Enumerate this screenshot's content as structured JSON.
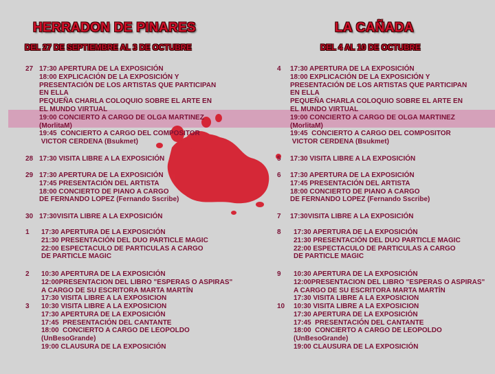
{
  "highlight_color": "#d778a5",
  "splat_color": "#d61a2a",
  "columns": [
    {
      "title": "HERRADON DE PINARES",
      "subtitle": "DEL 27 DE SEPTIEMBRE AL 3 DE OCTUBRE",
      "days": [
        {
          "day": "27",
          "lines": [
            "17:30 APERTURA DE LA EXPOSICIÓN",
            "18:00 EXPLICACIÓN DE LA EXPOSICIÓN Y",
            "PRESENTACIÓN DE LOS ARTISTAS QUE PARTICIPAN",
            "EN ELLA",
            "PEQUEÑA CHARLA COLOQUIO SOBRE EL ARTE EN",
            "EL MUNDO VIRTUAL",
            "19:00 CONCIERTO A CARGO DE OLGA MARTINEZ",
            "(MorlitaM)",
            "19:45  CONCIERTO A CARGO DEL COMPOSITOR",
            " VICTOR CERDENA (Bsukmet)"
          ]
        },
        {
          "day": "28",
          "lines": [
            "17:30 VISITA LIBRE A LA EXPOSICIÓN"
          ]
        },
        {
          "day": "29",
          "lines": [
            "17:30 APERTURA DE LA EXPOSICIÓN",
            "17:45 PRESENTACIÓN DEL ARTISTA",
            "18:00 CONCIERTO DE PIANO A CARGO",
            "DE FERNANDO LOPEZ (Fernando Sscribe)"
          ]
        },
        {
          "day": "30",
          "lines": [
            "17:30VISITA LIBRE A LA EXPOSICIÓN"
          ]
        },
        {
          "day": "1",
          "lines": [
            "17:30 APERTURA DE LA EXPOSICIÓN",
            "21:30 PRESENTACIÓN DEL DUO PARTICLE MAGIC",
            "22:00 ESPECTACULO DE PARTICULAS A CARGO",
            "DE PARTICLE MAGIC"
          ]
        },
        {
          "day": "2",
          "lines": [
            "10:30 APERTURA DE LA EXPOSICIÓN",
            "12:00PRESENTACION DEL LIBRO \"ESPERAS O ASPIRAS\"",
            "A CARGO DE SU ESCRITORA MARTA MARTÍN",
            "17:30 VISITA LIBRE A LA EXPOSICION"
          ]
        },
        {
          "day": "3",
          "lines": [
            "10:30 VISITA LIBRE A LA EXPOSICION",
            "17:30 APERTURA DE LA EXPOSICIÓN",
            "17:45  PRESENTACIÓN DEL CANTANTE",
            "18:00  CONCIERTO A CARGO DE LEOPOLDO",
            "(UnBesoGrande)",
            "19:00 CLAUSURA DE LA EXPOSICIÓN"
          ]
        }
      ]
    },
    {
      "title": "LA CAÑADA",
      "subtitle": "DEL 4 AL 10 DE OCTUBRE",
      "days": [
        {
          "day": "4",
          "lines": [
            "17:30 APERTURA DE LA EXPOSICIÓN",
            "18:00 EXPLICACIÓN DE LA EXPOSICIÓN Y",
            "PRESENTACIÓN DE LOS ARTISTAS QUE PARTICIPAN",
            "EN ELLA",
            "PEQUEÑA CHARLA COLOQUIO SOBRE EL ARTE EN",
            "EL MUNDO VIRTUAL",
            "19:00 CONCIERTO A CARGO DE OLGA MARTINEZ",
            "(MorlitaM)",
            "19:45  CONCIERTO A CARGO DEL COMPOSITOR",
            " VICTOR CERDENA (Bsukmet)"
          ]
        },
        {
          "day": "5",
          "lines": [
            "17:30 VISITA LIBRE A LA EXPOSICIÓN"
          ]
        },
        {
          "day": "6",
          "lines": [
            "17:30 APERTURA DE LA EXPOSICIÓN",
            "17:45 PRESENTACIÓN DEL ARTISTA",
            "18:00 CONCIERTO DE PIANO A CARGO",
            "DE FERNANDO LOPEZ (Fernando Sscribe)"
          ]
        },
        {
          "day": "7",
          "lines": [
            "17:30VISITA LIBRE A LA EXPOSICIÓN"
          ]
        },
        {
          "day": "8",
          "lines": [
            "17:30 APERTURA DE LA EXPOSICIÓN",
            "21:30 PRESENTACIÓN DEL DUO PARTICLE MAGIC",
            "22:00 ESPECTACULO DE PARTICULAS A CARGO",
            "DE PARTICLE MAGIC"
          ]
        },
        {
          "day": "9",
          "lines": [
            "10:30 APERTURA DE LA EXPOSICIÓN",
            "12:00PRESENTACION DEL LIBRO \"ESPERAS O ASPIRAS\"",
            "A CARGO DE SU ESCRITORA MARTA MARTÍN",
            "17:30 VISITA LIBRE A LA EXPOSICION"
          ]
        },
        {
          "day": "10",
          "lines": [
            "10:30 VISITA LIBRE A LA EXPOSICION",
            "17:30 APERTURA DE LA EXPOSICIÓN",
            "17:45  PRESENTACIÓN DEL CANTANTE",
            "18:00  CONCIERTO A CARGO DE LEOPOLDO",
            "(UnBesoGrande)",
            "19:00 CLAUSURA DE LA EXPOSICIÓN"
          ]
        }
      ]
    }
  ]
}
